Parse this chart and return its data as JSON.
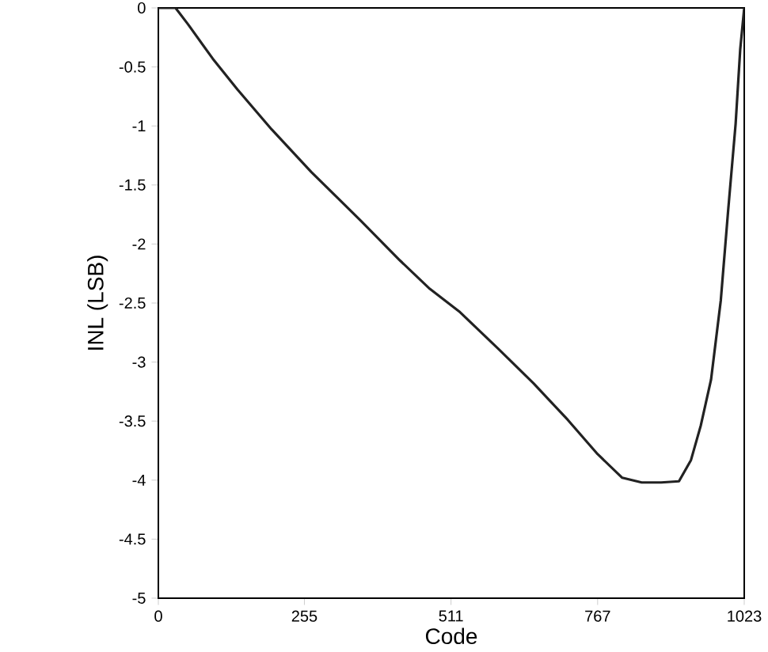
{
  "chart_data": {
    "type": "line",
    "xlabel": "Code",
    "ylabel": "INL (LSB)",
    "xlim": [
      0,
      1023
    ],
    "ylim": [
      -5,
      0
    ],
    "xticks": [
      0,
      255,
      511,
      767,
      1023
    ],
    "yticks": [
      {
        "value": -5,
        "label": "-5"
      },
      {
        "value": -4.5,
        "label": "-4.5"
      },
      {
        "value": -4,
        "label": "-4"
      },
      {
        "value": -3.5,
        "label": "-3.5"
      },
      {
        "value": -3,
        "label": "-3"
      },
      {
        "value": -2.5,
        "label": "-2.5"
      },
      {
        "value": -2,
        "label": "-2"
      },
      {
        "value": -1.5,
        "label": "-1.5"
      },
      {
        "value": -1,
        "label": "-1"
      },
      {
        "value": -0.5,
        "label": "-0.5"
      },
      {
        "value": 0,
        "label": "0"
      }
    ],
    "series": [
      {
        "color": "#222222",
        "x": [
          0,
          30,
          52,
          95,
          138,
          198,
          267,
          353,
          422,
          474,
          525,
          594,
          655,
          715,
          767,
          810,
          844,
          878,
          909,
          930,
          947,
          965,
          982,
          995,
          1008,
          1016,
          1023
        ],
        "values": [
          0,
          0,
          -0.14,
          -0.43,
          -0.69,
          -1.03,
          -1.39,
          -1.8,
          -2.14,
          -2.38,
          -2.57,
          -2.89,
          -3.18,
          -3.49,
          -3.78,
          -3.98,
          -4.02,
          -4.02,
          -4.01,
          -3.83,
          -3.54,
          -3.15,
          -2.48,
          -1.71,
          -0.98,
          -0.35,
          0
        ]
      }
    ]
  }
}
